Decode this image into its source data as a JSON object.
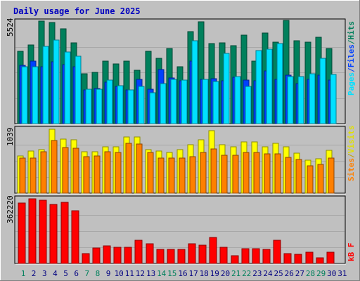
{
  "colors": {
    "background": "#c0c0c0",
    "panel": "#c0c0c0",
    "title": "#0000c0",
    "hits": "#00805c",
    "files": "#0040ff",
    "pages": "#00e0ff",
    "visits": "#ffff00",
    "sites": "#ff8000",
    "kbytes": "#ff0000",
    "weekday": "#000080",
    "weekend": "#00805c"
  },
  "chart_data": {
    "type": "bar",
    "title": "Daily usage for June 2025",
    "categories": [
      "1",
      "2",
      "3",
      "4",
      "5",
      "6",
      "7",
      "8",
      "9",
      "10",
      "11",
      "12",
      "13",
      "14",
      "15",
      "16",
      "17",
      "18",
      "19",
      "20",
      "21",
      "22",
      "23",
      "24",
      "25",
      "26",
      "27",
      "28",
      "29",
      "30",
      "31"
    ],
    "weekend_days": [
      "1",
      "7",
      "8",
      "14",
      "15",
      "21",
      "22",
      "28",
      "29"
    ],
    "panels": [
      {
        "id": "hits_files_pages",
        "max_label": "5524",
        "ymax": 5524,
        "legend": [
          "Pages",
          "/",
          "Files",
          "/",
          "Hits"
        ],
        "series": [
          {
            "name": "Hits",
            "color_key": "hits",
            "values": [
              3880,
              4250,
              5524,
              5450,
              5100,
              4350,
              2680,
              2750,
              3350,
              3200,
              3350,
              2880,
              3900,
              3530,
              4050,
              3050,
              4950,
              5480,
              4300,
              4350,
              4200,
              4750,
              3350,
              4880,
              4400,
              5550,
              4450,
              4400,
              4650,
              4050,
              0
            ]
          },
          {
            "name": "Files",
            "color_key": "files",
            "values": [
              3150,
              3350,
              3050,
              3320,
              3180,
              3050,
              1820,
              1880,
              2250,
              2000,
              1800,
              2380,
              1860,
              2900,
              2450,
              2300,
              3350,
              2380,
              2420,
              2300,
              2500,
              2350,
              2300,
              2850,
              2400,
              2600,
              2150,
              2400,
              2600,
              2350,
              0
            ]
          },
          {
            "name": "Pages",
            "color_key": "pages",
            "values": [
              3050,
              3050,
              4150,
              4500,
              3850,
              3650,
              1850,
              1860,
              2350,
              2050,
              1800,
              1990,
              1650,
              2150,
              2400,
              2350,
              4450,
              2380,
              2280,
              3800,
              2530,
              2020,
              3950,
              4000,
              4300,
              2550,
              2550,
              2700,
              3500,
              2650,
              0
            ]
          }
        ]
      },
      {
        "id": "visits_sites",
        "max_label": "1039",
        "ymax": 1039,
        "legend": [
          "Sites",
          "/",
          "Visits"
        ],
        "series": [
          {
            "name": "Visits",
            "color_key": "visits",
            "values": [
              600,
              680,
              700,
              1030,
              870,
              860,
              670,
              670,
              750,
              750,
              900,
              900,
              700,
              680,
              650,
              700,
              780,
              860,
              1000,
              780,
              740,
              830,
              830,
              750,
              800,
              740,
              640,
              530,
              550,
              690,
              0
            ]
          },
          {
            "name": "Sites",
            "color_key": "sites",
            "values": [
              560,
              570,
              670,
              850,
              730,
              720,
              590,
              600,
              670,
              660,
              800,
              790,
              650,
              560,
              560,
              560,
              590,
              650,
              710,
              610,
              610,
              650,
              660,
              630,
              630,
              580,
              540,
              440,
              460,
              560,
              0
            ]
          }
        ]
      },
      {
        "id": "kbytes",
        "max_label": "362220",
        "ymax": 362220,
        "legend": [
          "kB",
          "F"
        ],
        "series": [
          {
            "name": "kB F",
            "color_key": "kbytes",
            "values": [
              338000,
              362000,
              356000,
              331000,
              342000,
              296000,
              57000,
              85000,
              97000,
              89000,
              92000,
              128000,
              112000,
              79000,
              79000,
              77000,
              109000,
              104000,
              145000,
              90000,
              42000,
              81000,
              83000,
              79000,
              129000,
              55000,
              53000,
              63000,
              31000,
              63000,
              0
            ]
          }
        ]
      }
    ]
  }
}
